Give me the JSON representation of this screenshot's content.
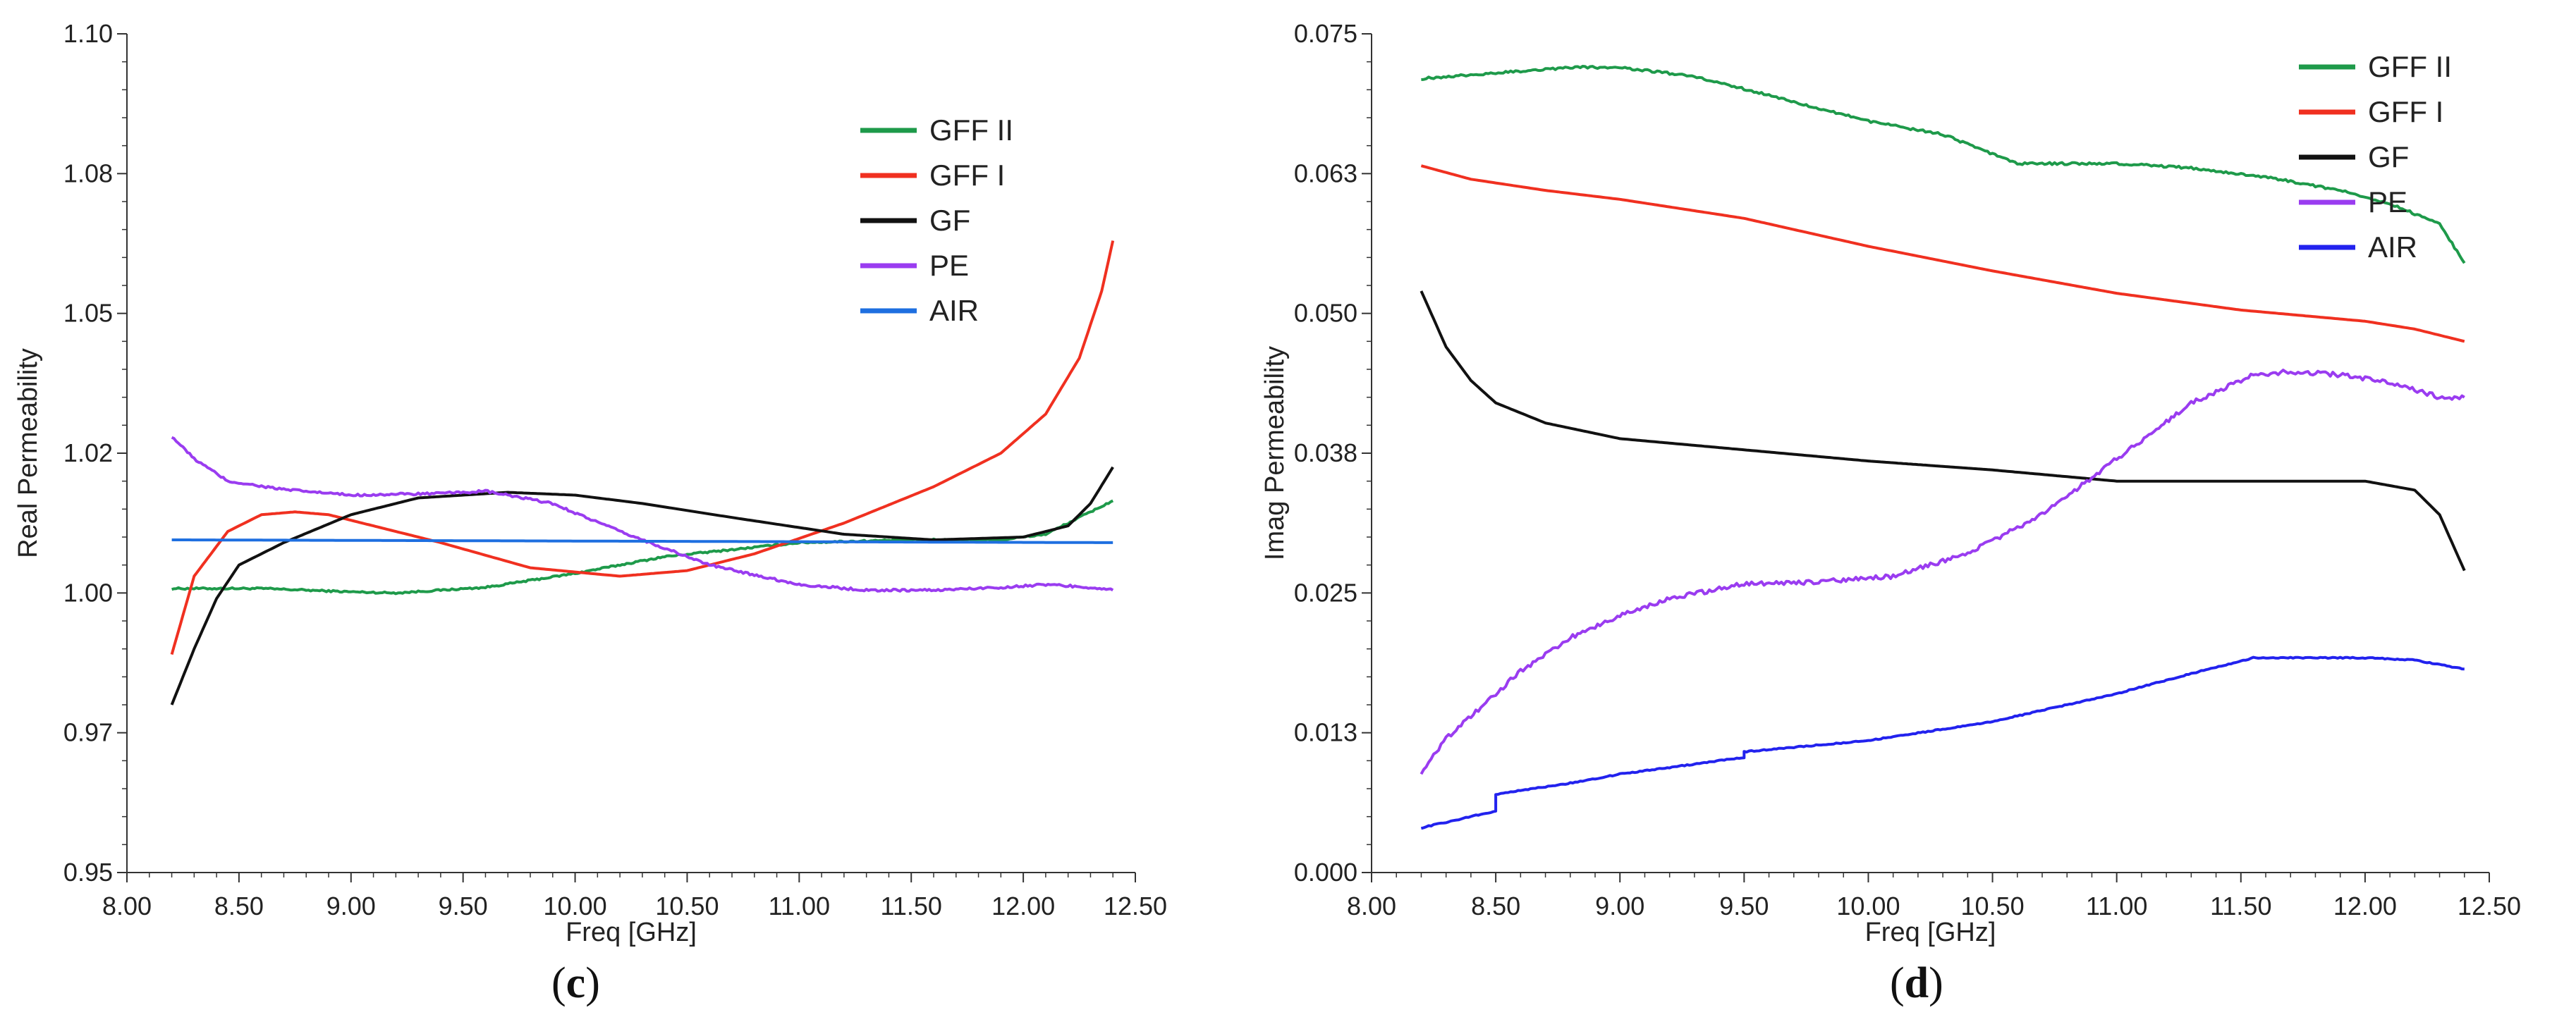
{
  "colors": {
    "GFF II": "#1e9a4a",
    "GFF I": "#f03020",
    "GF": "#111111",
    "PE": "#9a3cf0",
    "AIR_c": "#1e6fe0",
    "AIR_d": "#2222ee"
  },
  "chart_data": [
    {
      "id": "c",
      "type": "line",
      "panel_label": {
        "open": "(",
        "letter": "c",
        "close": ")"
      },
      "xlabel": "Freq [GHz]",
      "ylabel": "Real Permeability",
      "xlim": [
        8.0,
        12.5
      ],
      "ylim": [
        0.95,
        1.1
      ],
      "xticks": [
        "8.00",
        "8.50",
        "9.00",
        "9.50",
        "10.00",
        "10.50",
        "11.00",
        "11.50",
        "12.00",
        "12.50"
      ],
      "xtick_values": [
        8.0,
        8.5,
        9.0,
        9.5,
        10.0,
        10.5,
        11.0,
        11.5,
        12.0,
        12.5
      ],
      "yticks": [
        "0.95",
        "0.97",
        "1.00",
        "1.02",
        "1.05",
        "1.08",
        "1.10"
      ],
      "ytick_values": [
        0.95,
        0.975,
        1.0,
        1.025,
        1.05,
        1.075,
        1.1
      ],
      "legend": [
        "GFF II",
        "GFF I",
        "GF",
        "PE",
        "AIR"
      ],
      "series": [
        {
          "name": "GFF II",
          "noise": 0.0003,
          "x": [
            8.2,
            8.6,
            9.0,
            9.2,
            9.6,
            10.0,
            10.4,
            11.0,
            11.5,
            11.9,
            12.1,
            12.25,
            12.4
          ],
          "y": [
            1.0008,
            1.0008,
            1.0002,
            1.0,
            1.001,
            1.0035,
            1.0065,
            1.009,
            1.0095,
            1.0095,
            1.0105,
            1.0135,
            1.0165
          ]
        },
        {
          "name": "GFF I",
          "noise": 0,
          "x": [
            8.2,
            8.3,
            8.45,
            8.6,
            8.75,
            8.9,
            9.1,
            9.4,
            9.8,
            10.2,
            10.5,
            10.8,
            11.2,
            11.6,
            11.9,
            12.1,
            12.25,
            12.35,
            12.4
          ],
          "y": [
            0.989,
            1.003,
            1.011,
            1.014,
            1.0145,
            1.014,
            1.012,
            1.009,
            1.0045,
            1.003,
            1.004,
            1.007,
            1.0125,
            1.019,
            1.025,
            1.032,
            1.042,
            1.054,
            1.063
          ]
        },
        {
          "name": "GF",
          "noise": 0,
          "x": [
            8.2,
            8.3,
            8.4,
            8.5,
            8.7,
            9.0,
            9.3,
            9.7,
            10.0,
            10.3,
            10.7,
            11.2,
            11.6,
            12.0,
            12.2,
            12.3,
            12.4
          ],
          "y": [
            0.98,
            0.99,
            0.999,
            1.005,
            1.009,
            1.014,
            1.017,
            1.018,
            1.0175,
            1.016,
            1.0135,
            1.0105,
            1.0095,
            1.01,
            1.012,
            1.016,
            1.0225
          ]
        },
        {
          "name": "PE",
          "noise": 0.0004,
          "x": [
            8.2,
            8.3,
            8.45,
            8.7,
            9.0,
            9.4,
            9.6,
            9.9,
            10.2,
            10.6,
            11.0,
            11.3,
            11.6,
            11.9,
            12.1,
            12.3,
            12.4
          ],
          "y": [
            1.028,
            1.024,
            1.02,
            1.0185,
            1.0175,
            1.0178,
            1.0182,
            1.016,
            1.011,
            1.005,
            1.0015,
            1.0005,
            1.0005,
            1.001,
            1.0015,
            1.001,
            1.0005
          ]
        },
        {
          "name": "AIR",
          "noise": 0,
          "x": [
            8.2,
            12.4
          ],
          "y": [
            1.0095,
            1.009
          ]
        }
      ]
    },
    {
      "id": "d",
      "type": "line",
      "panel_label": {
        "open": "(",
        "letter": "d",
        "close": ")"
      },
      "xlabel": "Freq [GHz]",
      "ylabel": "Imag Permeability",
      "xlim": [
        8.0,
        12.5
      ],
      "ylim": [
        0.0,
        0.075
      ],
      "xticks": [
        "8.00",
        "8.50",
        "9.00",
        "9.50",
        "10.00",
        "10.50",
        "11.00",
        "11.50",
        "12.00",
        "12.50"
      ],
      "xtick_values": [
        8.0,
        8.5,
        9.0,
        9.5,
        10.0,
        10.5,
        11.0,
        11.5,
        12.0,
        12.5
      ],
      "yticks": [
        "0.000",
        "0.013",
        "0.025",
        "0.038",
        "0.050",
        "0.063",
        "0.075"
      ],
      "ytick_values": [
        0.0,
        0.0125,
        0.025,
        0.0375,
        0.05,
        0.0625,
        0.075
      ],
      "legend": [
        "GFF II",
        "GFF I",
        "GF",
        "PE",
        "AIR"
      ],
      "series": [
        {
          "name": "GFF II",
          "noise": 0.0002,
          "x": [
            8.2,
            8.5,
            8.8,
            9.0,
            9.3,
            9.6,
            10.0,
            10.3,
            10.6,
            11.0,
            11.3,
            11.6,
            11.9,
            12.1,
            12.3,
            12.4
          ],
          "y": [
            0.071,
            0.0715,
            0.072,
            0.072,
            0.0712,
            0.0695,
            0.0672,
            0.066,
            0.0634,
            0.0634,
            0.063,
            0.0622,
            0.061,
            0.0598,
            0.058,
            0.0545
          ]
        },
        {
          "name": "GFF I",
          "noise": 0,
          "x": [
            8.2,
            8.4,
            8.7,
            9.0,
            9.5,
            10.0,
            10.5,
            11.0,
            11.5,
            12.0,
            12.2,
            12.4
          ],
          "y": [
            0.0632,
            0.062,
            0.061,
            0.0602,
            0.0585,
            0.056,
            0.0538,
            0.0518,
            0.0503,
            0.0493,
            0.0486,
            0.0475
          ]
        },
        {
          "name": "GF",
          "noise": 0,
          "x": [
            8.2,
            8.3,
            8.4,
            8.5,
            8.7,
            9.0,
            9.5,
            10.0,
            10.5,
            11.0,
            11.5,
            12.0,
            12.2,
            12.3,
            12.4
          ],
          "y": [
            0.052,
            0.047,
            0.044,
            0.042,
            0.0402,
            0.0388,
            0.0378,
            0.0368,
            0.036,
            0.035,
            0.035,
            0.035,
            0.0342,
            0.032,
            0.027
          ]
        },
        {
          "name": "PE",
          "noise": 0.0004,
          "x": [
            8.2,
            8.3,
            8.45,
            8.6,
            8.8,
            9.0,
            9.2,
            9.5,
            9.8,
            10.1,
            10.4,
            10.7,
            11.0,
            11.3,
            11.55,
            11.7,
            11.9,
            12.1,
            12.3,
            12.4
          ],
          "y": [
            0.009,
            0.012,
            0.015,
            0.018,
            0.021,
            0.023,
            0.0245,
            0.0258,
            0.026,
            0.0265,
            0.0285,
            0.032,
            0.037,
            0.042,
            0.0445,
            0.0448,
            0.0445,
            0.0438,
            0.0425,
            0.0425
          ]
        },
        {
          "name": "AIR",
          "noise": 0.0001,
          "x": [
            8.2,
            8.4,
            8.5,
            8.5,
            8.8,
            9.0,
            9.5,
            9.5,
            10.0,
            10.5,
            11.0,
            11.3,
            11.55,
            11.8,
            12.0,
            12.2,
            12.4
          ],
          "y": [
            0.004,
            0.005,
            0.0055,
            0.007,
            0.008,
            0.0088,
            0.0103,
            0.0108,
            0.0118,
            0.0135,
            0.016,
            0.0178,
            0.0192,
            0.0192,
            0.0192,
            0.019,
            0.0182
          ]
        }
      ]
    }
  ]
}
